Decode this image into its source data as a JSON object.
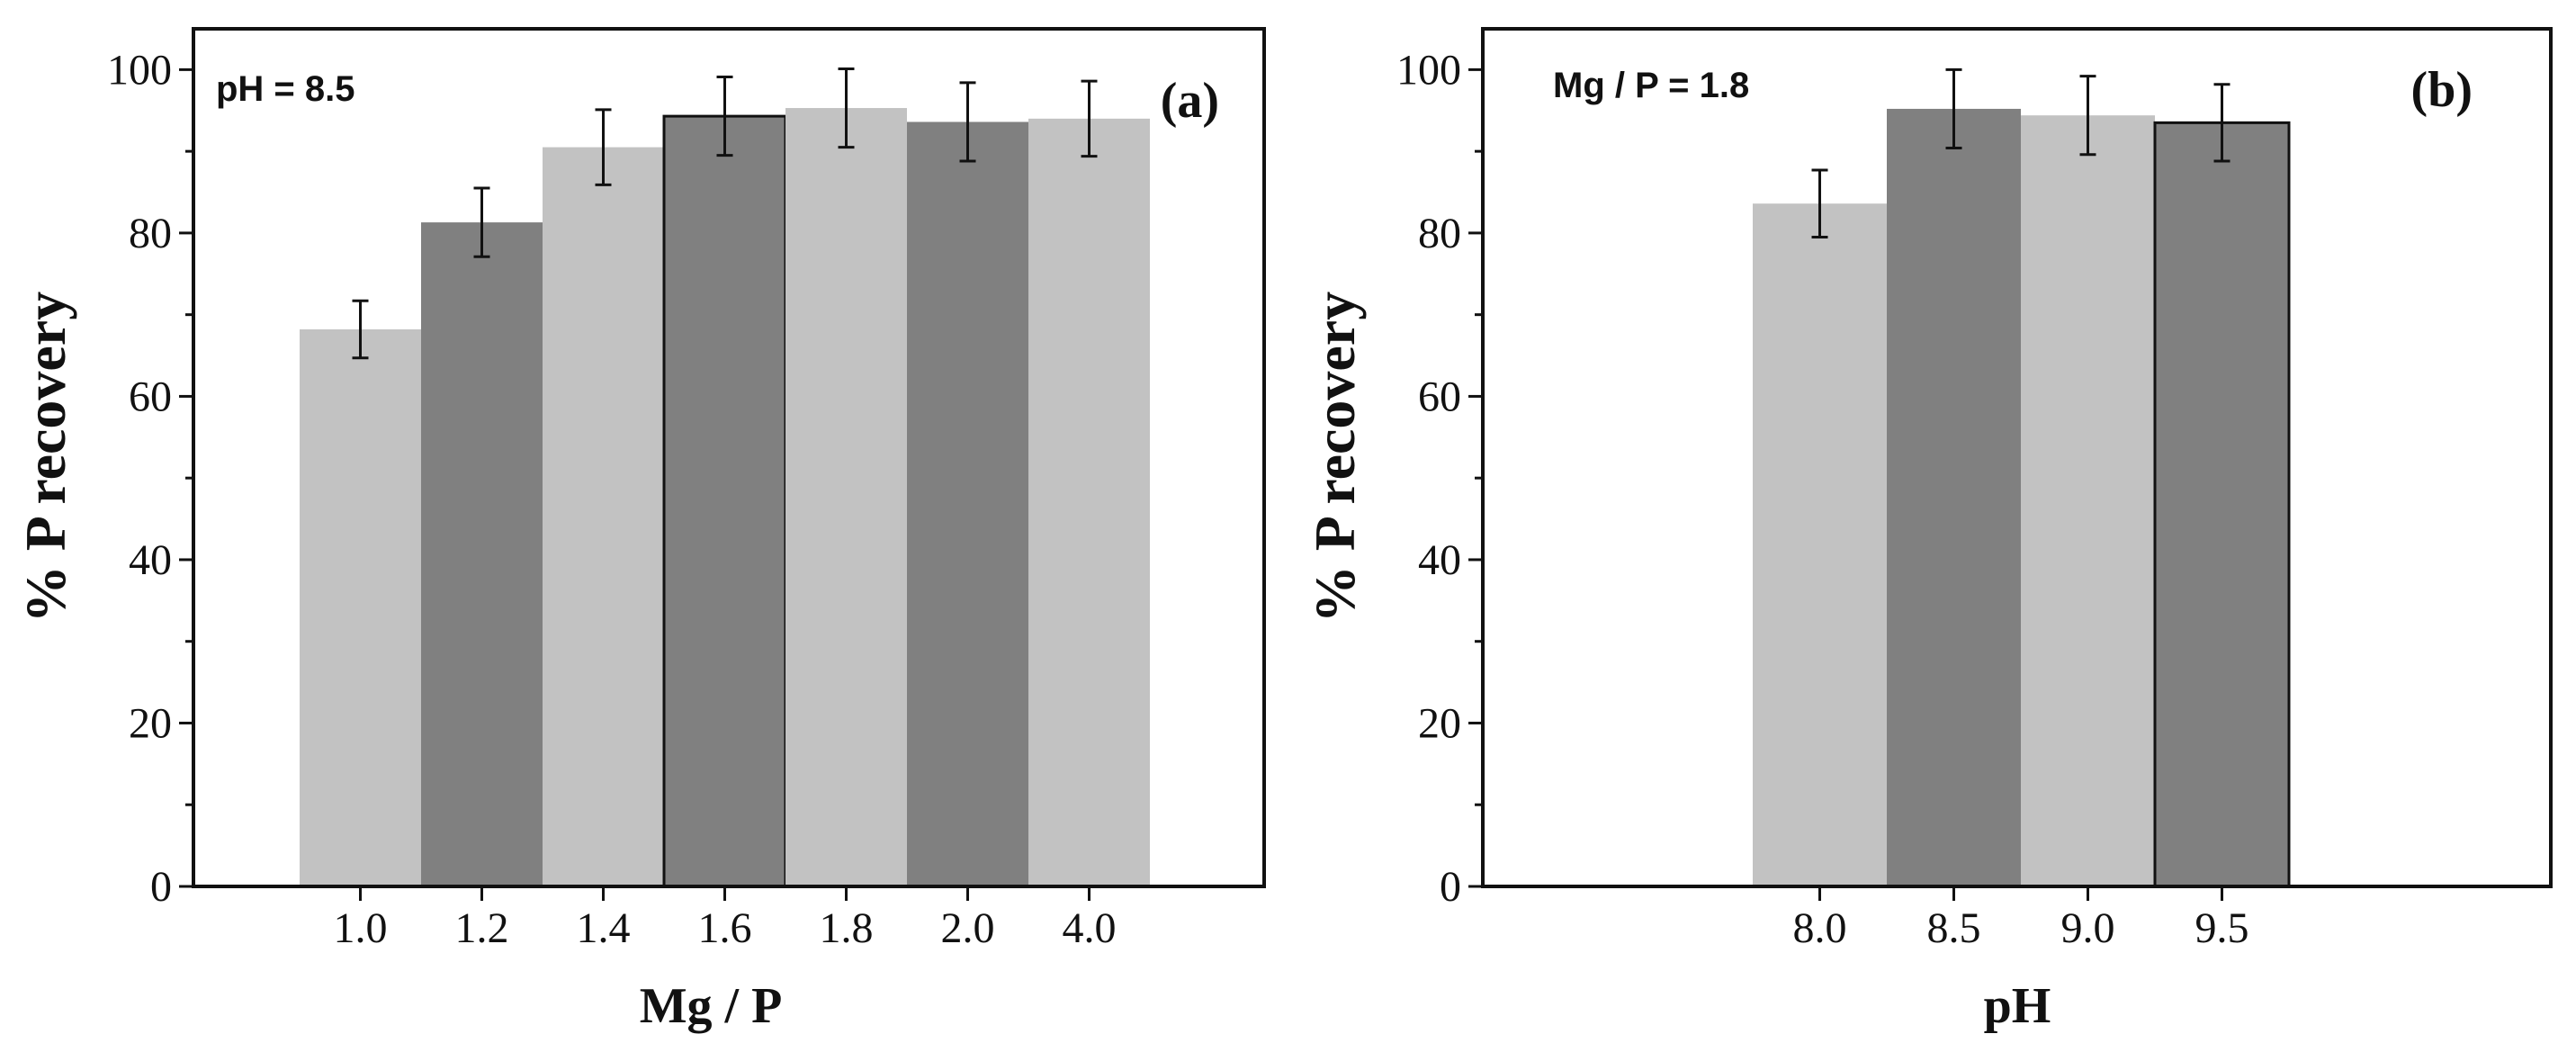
{
  "colors": {
    "light_bar": "#c2c2c2",
    "dark_bar": "#808080",
    "axis": "#111111"
  },
  "chart_data": [
    {
      "type": "bar",
      "panel_label": "(a)",
      "annotation": "pH = 8.5",
      "xlabel": "Mg / P",
      "ylabel": "% P recovery",
      "ylim": [
        0,
        105
      ],
      "yticks": [
        "0",
        "20",
        "40",
        "60",
        "80",
        "100"
      ],
      "categories": [
        "1.0",
        "1.2",
        "1.4",
        "1.6",
        "1.8",
        "2.0",
        "4.0"
      ],
      "values": [
        68.2,
        81.3,
        90.5,
        94.3,
        95.3,
        93.6,
        94.0
      ],
      "errors": [
        3.5,
        4.2,
        4.6,
        4.8,
        4.8,
        4.8,
        4.6
      ],
      "bar_colors": [
        "light",
        "dark",
        "light",
        "dark",
        "light",
        "dark",
        "light"
      ],
      "outlined": [
        false,
        false,
        false,
        true,
        false,
        false,
        false
      ],
      "grid": false,
      "legend": "none"
    },
    {
      "type": "bar",
      "panel_label": "(b)",
      "annotation": "Mg / P = 1.8",
      "xlabel": "pH",
      "ylabel": "% P recovery",
      "ylim": [
        0,
        105
      ],
      "yticks": [
        "0",
        "20",
        "40",
        "60",
        "80",
        "100"
      ],
      "categories": [
        "8.0",
        "8.5",
        "9.0",
        "9.5"
      ],
      "values": [
        83.6,
        95.2,
        94.4,
        93.5
      ],
      "errors": [
        4.1,
        4.8,
        4.8,
        4.7
      ],
      "bar_colors": [
        "light",
        "dark",
        "light",
        "dark"
      ],
      "outlined": [
        false,
        false,
        false,
        true
      ],
      "grid": false,
      "legend": "none"
    }
  ]
}
